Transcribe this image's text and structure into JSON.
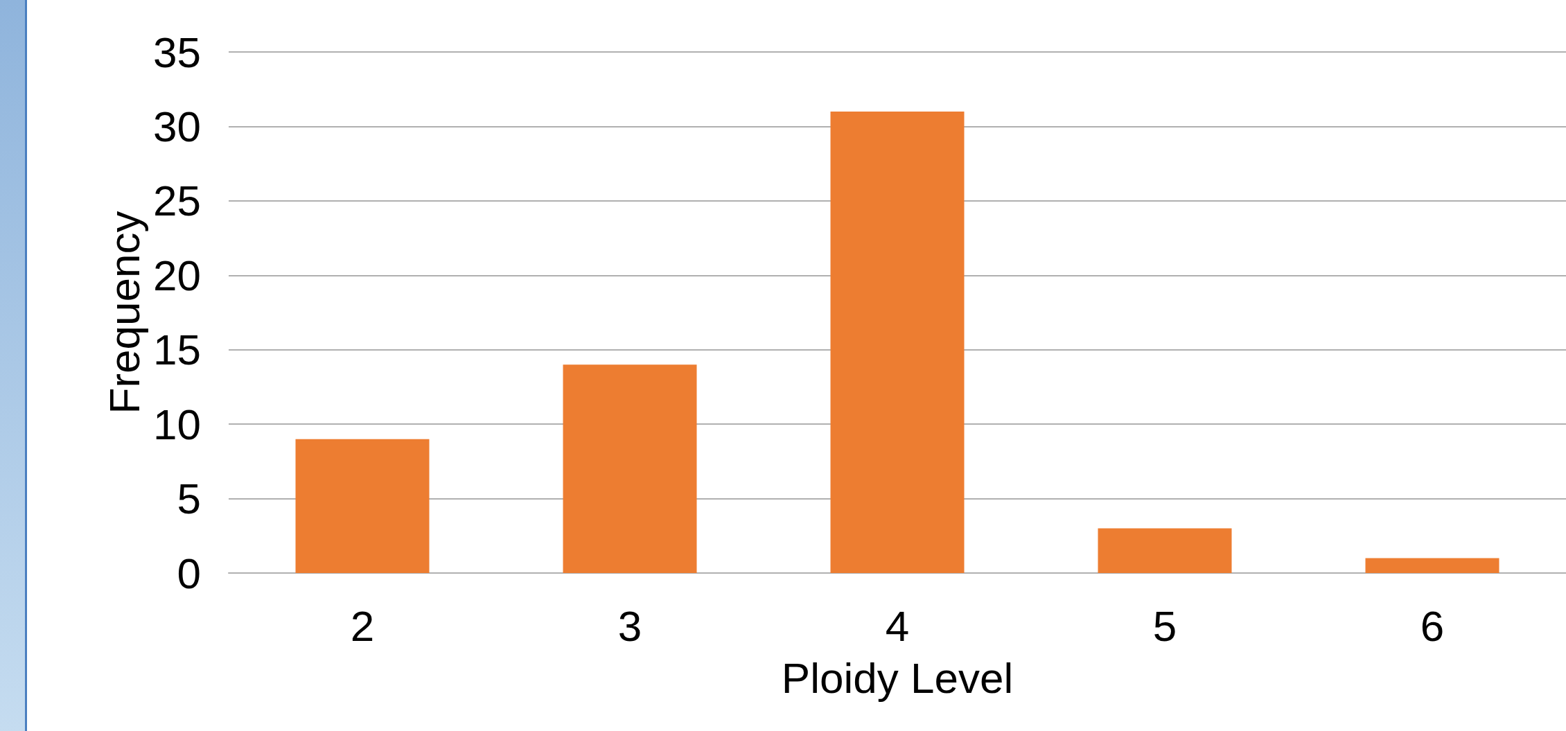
{
  "chart_data": {
    "type": "bar",
    "xlabel": "Ploidy Level",
    "ylabel": "Frequency",
    "categories": [
      "2",
      "3",
      "4",
      "5",
      "6"
    ],
    "values": [
      9,
      14,
      31,
      3,
      1
    ],
    "color": "#ed7d31",
    "ylim": [
      0,
      35
    ],
    "yticks": [
      0,
      5,
      10,
      15,
      20,
      25,
      30,
      35
    ],
    "grid": "y"
  }
}
